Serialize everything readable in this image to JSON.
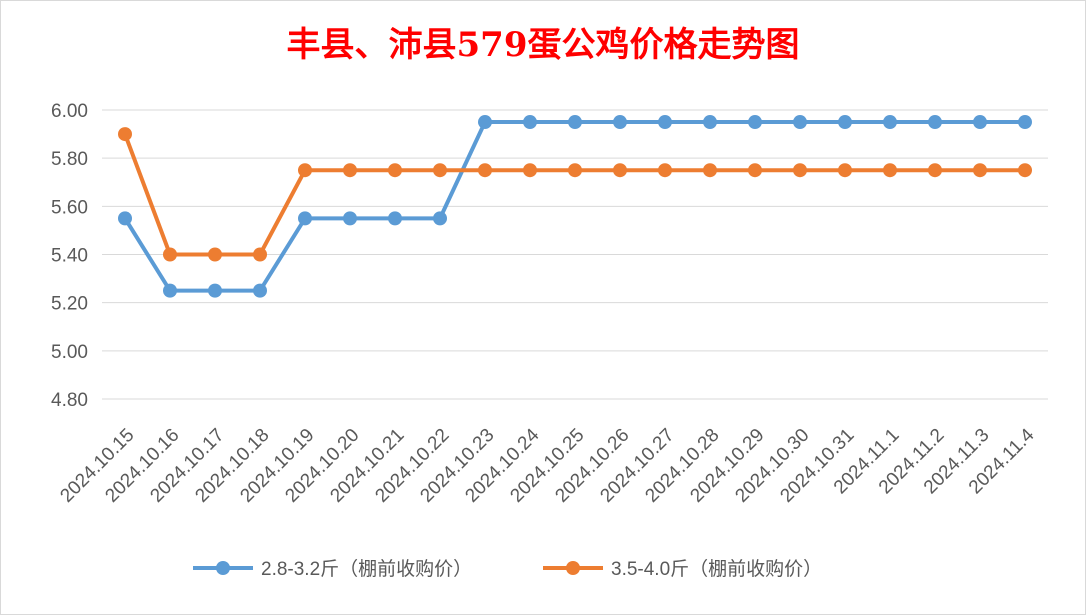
{
  "chart_data": {
    "type": "line",
    "title": "丰县、沛县579蛋公鸡价格走势图",
    "xlabel": "",
    "ylabel": "",
    "ylim": [
      4.8,
      6.0
    ],
    "y_ticks": [
      "6.00",
      "5.80",
      "5.60",
      "5.40",
      "5.20",
      "5.00",
      "4.80"
    ],
    "grid": true,
    "legend_position": "bottom",
    "categories": [
      "2024.10.15",
      "2024.10.16",
      "2024.10.17",
      "2024.10.18",
      "2024.10.19",
      "2024.10.20",
      "2024.10.21",
      "2024.10.22",
      "2024.10.23",
      "2024.10.24",
      "2024.10.25",
      "2024.10.26",
      "2024.10.27",
      "2024.10.28",
      "2024.10.29",
      "2024.10.30",
      "2024.10.31",
      "2024.11.1",
      "2024.11.2",
      "2024.11.3",
      "2024.11.4"
    ],
    "series": [
      {
        "name": "2.8-3.2斤（棚前收购价）",
        "color": "#5b9bd5",
        "values": [
          5.55,
          5.25,
          5.25,
          5.25,
          5.55,
          5.55,
          5.55,
          5.55,
          5.95,
          5.95,
          5.95,
          5.95,
          5.95,
          5.95,
          5.95,
          5.95,
          5.95,
          5.95,
          5.95,
          5.95,
          5.95
        ]
      },
      {
        "name": "3.5-4.0斤（棚前收购价）",
        "color": "#ed7d31",
        "values": [
          5.9,
          5.4,
          5.4,
          5.4,
          5.75,
          5.75,
          5.75,
          5.75,
          5.75,
          5.75,
          5.75,
          5.75,
          5.75,
          5.75,
          5.75,
          5.75,
          5.75,
          5.75,
          5.75,
          5.75,
          5.75
        ]
      }
    ]
  }
}
